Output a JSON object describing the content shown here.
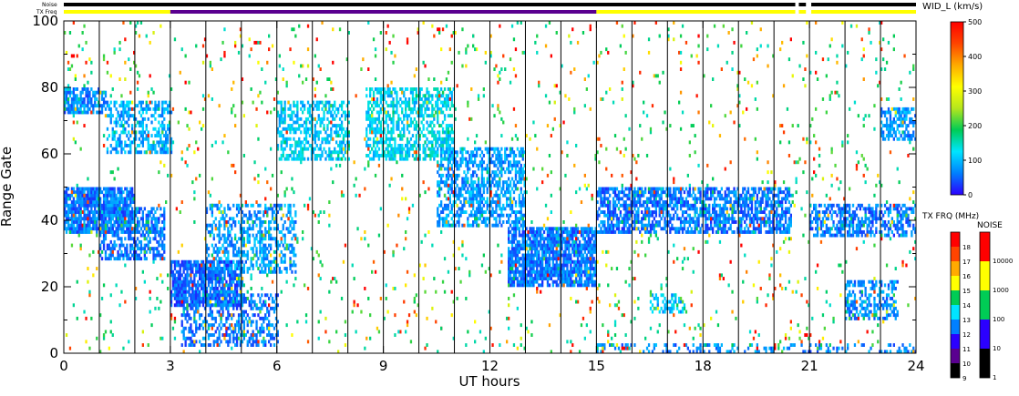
{
  "chart_data": {
    "type": "heatmap",
    "title": "",
    "xlabel": "UT hours",
    "ylabel": "Range Gate",
    "xlim": [
      0,
      24
    ],
    "ylim": [
      0,
      100
    ],
    "x_ticks": [
      "0",
      "3",
      "6",
      "9",
      "12",
      "15",
      "18",
      "21",
      "24"
    ],
    "y_ticks": [
      "0",
      "20",
      "40",
      "60",
      "80",
      "100"
    ],
    "header_labels": {
      "noise": "Noise",
      "txfreq": "TX Freq"
    },
    "noise_bar": {
      "segments": [
        {
          "start": 0.0,
          "end": 20.6,
          "color": "#000000"
        },
        {
          "start": 20.7,
          "end": 20.9,
          "color": "#000000"
        },
        {
          "start": 21.05,
          "end": 24.0,
          "color": "#000000"
        }
      ]
    },
    "txfreq_bar": {
      "segments": [
        {
          "start": 0.0,
          "end": 3.0,
          "color": "#ffff00"
        },
        {
          "start": 3.0,
          "end": 15.0,
          "color": "#5a0090"
        },
        {
          "start": 15.0,
          "end": 20.6,
          "color": "#ffff00"
        },
        {
          "start": 20.7,
          "end": 20.9,
          "color": "#ffff00"
        },
        {
          "start": 21.05,
          "end": 24.0,
          "color": "#ffff00"
        }
      ]
    },
    "vertical_lines_hours": [
      1,
      2,
      3,
      4,
      5,
      6,
      7,
      8,
      9,
      10,
      11,
      12,
      13,
      14,
      15,
      16,
      17,
      18,
      19,
      20,
      21,
      22,
      23
    ],
    "scatter_bands": [
      {
        "t": [
          0.0,
          2.0
        ],
        "r": [
          36,
          50
        ],
        "value": 60,
        "density": 0.85
      },
      {
        "t": [
          1.0,
          2.8
        ],
        "r": [
          28,
          44
        ],
        "value": 60,
        "density": 0.6
      },
      {
        "t": [
          0.0,
          1.2
        ],
        "r": [
          72,
          80
        ],
        "value": 70,
        "density": 0.7
      },
      {
        "t": [
          1.2,
          3.0
        ],
        "r": [
          60,
          76
        ],
        "value": 90,
        "density": 0.45
      },
      {
        "t": [
          3.0,
          5.0
        ],
        "r": [
          14,
          28
        ],
        "value": 50,
        "density": 0.8
      },
      {
        "t": [
          3.3,
          6.0
        ],
        "r": [
          2,
          18
        ],
        "value": 60,
        "density": 0.45
      },
      {
        "t": [
          4.0,
          6.5
        ],
        "r": [
          24,
          45
        ],
        "value": 80,
        "density": 0.45
      },
      {
        "t": [
          6.0,
          8.0
        ],
        "r": [
          58,
          76
        ],
        "value": 110,
        "density": 0.5
      },
      {
        "t": [
          8.5,
          11.0
        ],
        "r": [
          58,
          80
        ],
        "value": 120,
        "density": 0.55
      },
      {
        "t": [
          10.5,
          13.0
        ],
        "r": [
          38,
          62
        ],
        "value": 80,
        "density": 0.55
      },
      {
        "t": [
          12.5,
          15.0
        ],
        "r": [
          20,
          38
        ],
        "value": 60,
        "density": 0.8
      },
      {
        "t": [
          15.0,
          20.5
        ],
        "r": [
          36,
          50
        ],
        "value": 60,
        "density": 0.65
      },
      {
        "t": [
          15.0,
          24.0
        ],
        "r": [
          0,
          3
        ],
        "value": 70,
        "density": 0.25
      },
      {
        "t": [
          21.0,
          24.0
        ],
        "r": [
          35,
          45
        ],
        "value": 60,
        "density": 0.55
      },
      {
        "t": [
          22.0,
          23.5
        ],
        "r": [
          10,
          22
        ],
        "value": 70,
        "density": 0.45
      },
      {
        "t": [
          23.0,
          24.0
        ],
        "r": [
          64,
          74
        ],
        "value": 80,
        "density": 0.6
      },
      {
        "t": [
          16.5,
          17.5
        ],
        "r": [
          12,
          18
        ],
        "value": 100,
        "density": 0.4
      },
      {
        "t": [
          0.0,
          24.0
        ],
        "r": [
          0,
          100
        ],
        "value": 400,
        "density": 0.015
      },
      {
        "t": [
          0.0,
          24.0
        ],
        "r": [
          0,
          100
        ],
        "value": 180,
        "density": 0.02
      }
    ],
    "colorbar_velocity": {
      "label": "WID_L (km/s)",
      "ticks": [
        "0",
        "100",
        "200",
        "300",
        "400",
        "500"
      ],
      "range": [
        0,
        500
      ],
      "stops": [
        "#2b00ff",
        "#0080ff",
        "#00e5ff",
        "#00cc55",
        "#b5e61d",
        "#ffff00",
        "#ffaa00",
        "#ff4400",
        "#ff0000"
      ]
    },
    "colorbar_txfreq": {
      "label": "TX FRQ (MHz)",
      "ticks": [
        "9",
        "10",
        "11",
        "12",
        "13",
        "14",
        "15",
        "16",
        "17",
        "18"
      ],
      "colors": [
        "#000000",
        "#5a0090",
        "#2b00ff",
        "#0080ff",
        "#00e5ff",
        "#00cc55",
        "#ffff00",
        "#ffaa00",
        "#ff4400",
        "#ff0000"
      ]
    },
    "colorbar_noise": {
      "label": "NOISE",
      "ticks": [
        "1",
        "10",
        "100",
        "1000",
        "10000"
      ],
      "colors": [
        "#000000",
        "#2b00ff",
        "#00cc55",
        "#ffff00",
        "#ff0000"
      ]
    }
  }
}
